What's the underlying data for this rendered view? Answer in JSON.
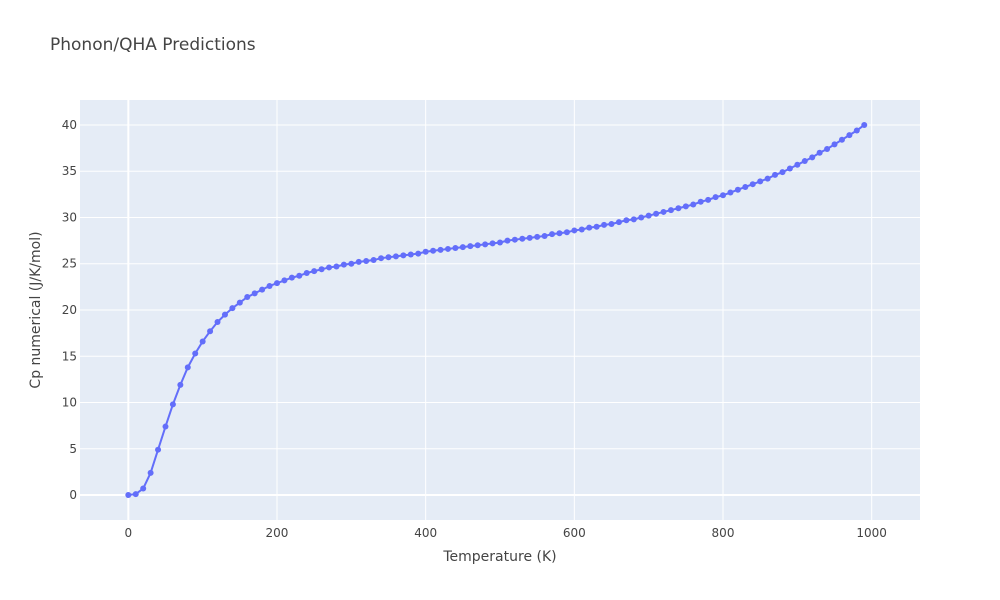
{
  "chart_data": {
    "type": "line",
    "title": "Phonon/QHA Predictions",
    "xlabel": "Temperature (K)",
    "ylabel": "Cp numerical (J/K/mol)",
    "xlim": [
      -65,
      1065
    ],
    "ylim": [
      -2.7,
      42.7
    ],
    "xticks": [
      0,
      200,
      400,
      600,
      800,
      1000
    ],
    "yticks": [
      0,
      5,
      10,
      15,
      20,
      25,
      30,
      35,
      40
    ],
    "grid": true,
    "legend": "none",
    "colors": {
      "line": "#636efa",
      "plot_bg": "#e5ecf6",
      "grid": "#ffffff",
      "text": "#444444"
    },
    "x": [
      0,
      10,
      20,
      30,
      40,
      50,
      60,
      70,
      80,
      90,
      100,
      110,
      120,
      130,
      140,
      150,
      160,
      170,
      180,
      190,
      200,
      210,
      220,
      230,
      240,
      250,
      260,
      270,
      280,
      290,
      300,
      310,
      320,
      330,
      340,
      350,
      360,
      370,
      380,
      390,
      400,
      410,
      420,
      430,
      440,
      450,
      460,
      470,
      480,
      490,
      500,
      510,
      520,
      530,
      540,
      550,
      560,
      570,
      580,
      590,
      600,
      610,
      620,
      630,
      640,
      650,
      660,
      670,
      680,
      690,
      700,
      710,
      720,
      730,
      740,
      750,
      760,
      770,
      780,
      790,
      800,
      810,
      820,
      830,
      840,
      850,
      860,
      870,
      880,
      890,
      900,
      910,
      920,
      930,
      940,
      950,
      960,
      970,
      980,
      990
    ],
    "y": [
      0.0,
      0.1,
      0.7,
      2.4,
      4.9,
      7.4,
      9.8,
      11.9,
      13.8,
      15.3,
      16.6,
      17.7,
      18.7,
      19.5,
      20.2,
      20.8,
      21.4,
      21.8,
      22.2,
      22.6,
      22.9,
      23.2,
      23.5,
      23.7,
      24.0,
      24.2,
      24.4,
      24.6,
      24.7,
      24.9,
      25.0,
      25.2,
      25.3,
      25.4,
      25.6,
      25.7,
      25.8,
      25.9,
      26.0,
      26.1,
      26.3,
      26.4,
      26.5,
      26.6,
      26.7,
      26.8,
      26.9,
      27.0,
      27.1,
      27.2,
      27.3,
      27.5,
      27.6,
      27.7,
      27.8,
      27.9,
      28.0,
      28.2,
      28.3,
      28.4,
      28.6,
      28.7,
      28.9,
      29.0,
      29.2,
      29.3,
      29.5,
      29.7,
      29.8,
      30.0,
      30.2,
      30.4,
      30.6,
      30.8,
      31.0,
      31.2,
      31.4,
      31.7,
      31.9,
      32.2,
      32.4,
      32.7,
      33.0,
      33.3,
      33.6,
      33.9,
      34.2,
      34.6,
      34.9,
      35.3,
      35.7,
      36.1,
      36.5,
      37.0,
      37.4,
      37.9,
      38.4,
      38.9,
      39.4,
      40.0
    ]
  }
}
